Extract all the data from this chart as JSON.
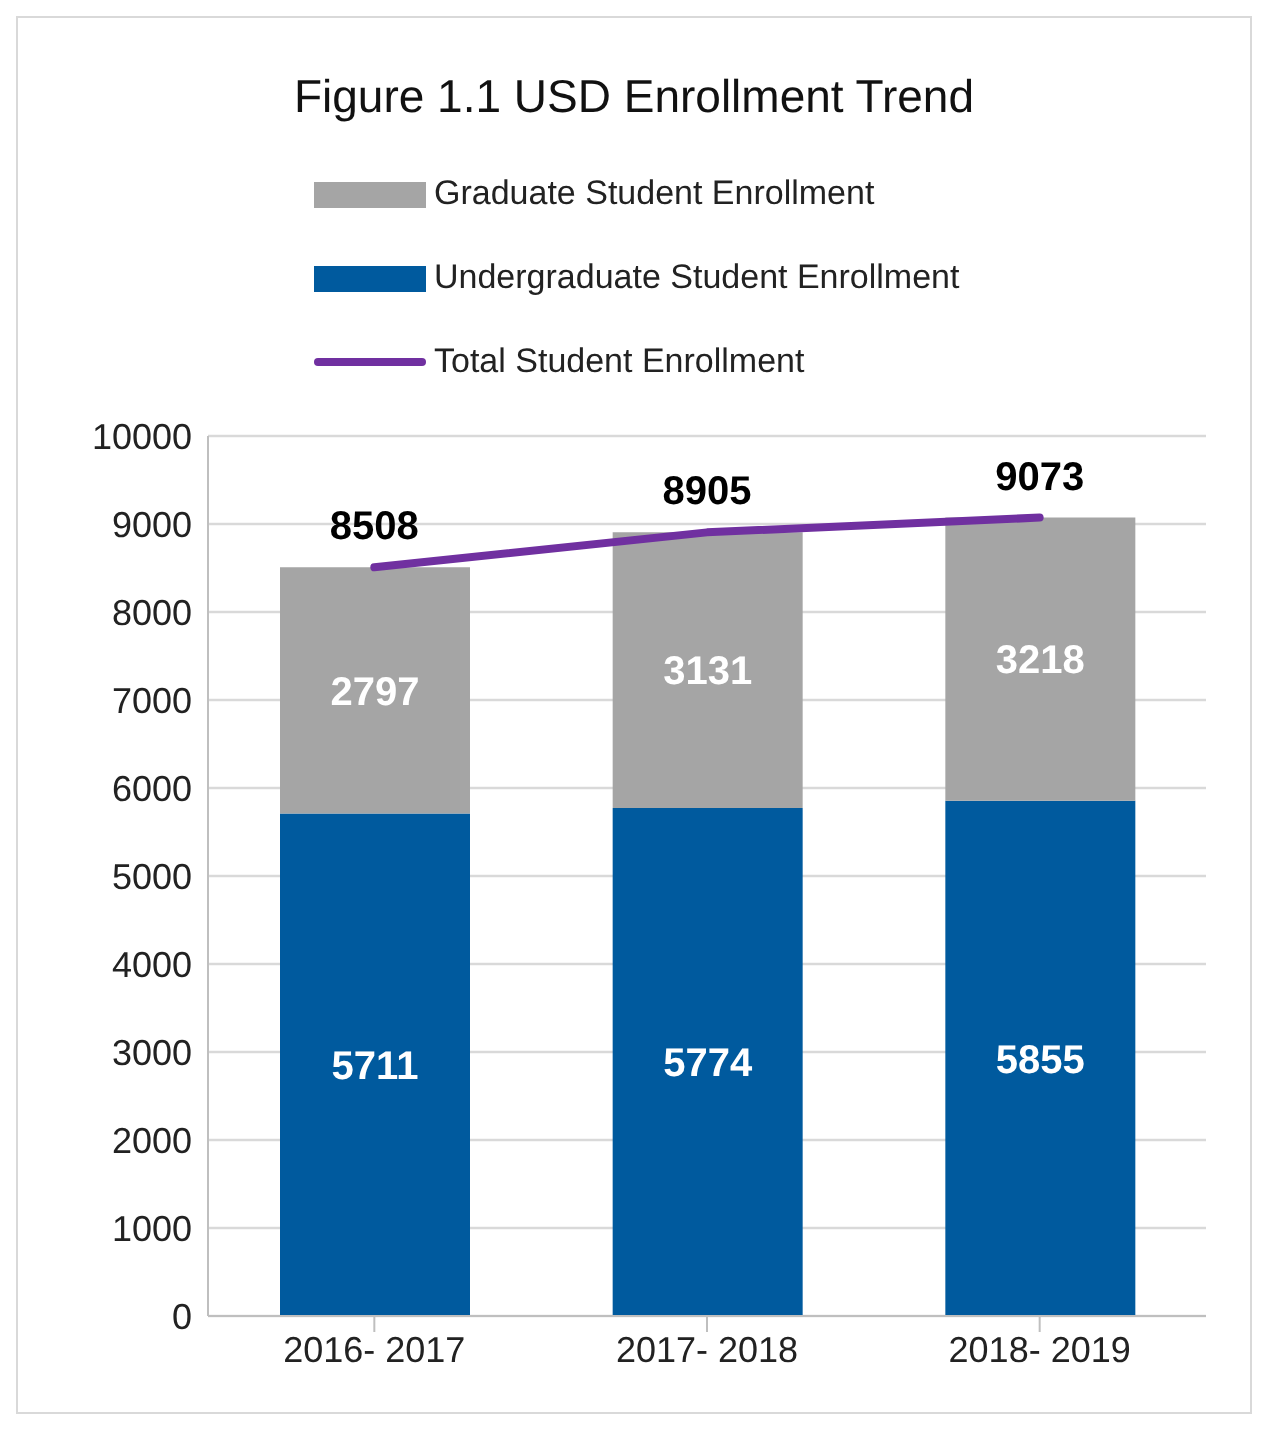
{
  "chart_data": {
    "type": "bar",
    "title": "Figure 1.1 USD Enrollment Trend",
    "categories": [
      "2016- 2017",
      "2017- 2018",
      "2018- 2019"
    ],
    "stacked": true,
    "series": [
      {
        "name": "Undergraduate Student Enrollment",
        "color": "#005a9e",
        "values": [
          5711,
          5774,
          5855
        ]
      },
      {
        "name": "Graduate Student Enrollment",
        "color": "#a5a5a5",
        "values": [
          2797,
          3131,
          3218
        ]
      },
      {
        "name": "Total Student Enrollment",
        "type": "line",
        "color": "#7030a0",
        "values": [
          8508,
          8905,
          9073
        ]
      }
    ],
    "ylim": [
      0,
      10000
    ],
    "yticks": [
      0,
      1000,
      2000,
      3000,
      4000,
      5000,
      6000,
      7000,
      8000,
      9000,
      10000
    ],
    "grid": "y",
    "legend": "top",
    "data_labels": true,
    "marker": "none",
    "line_style": "solid"
  }
}
